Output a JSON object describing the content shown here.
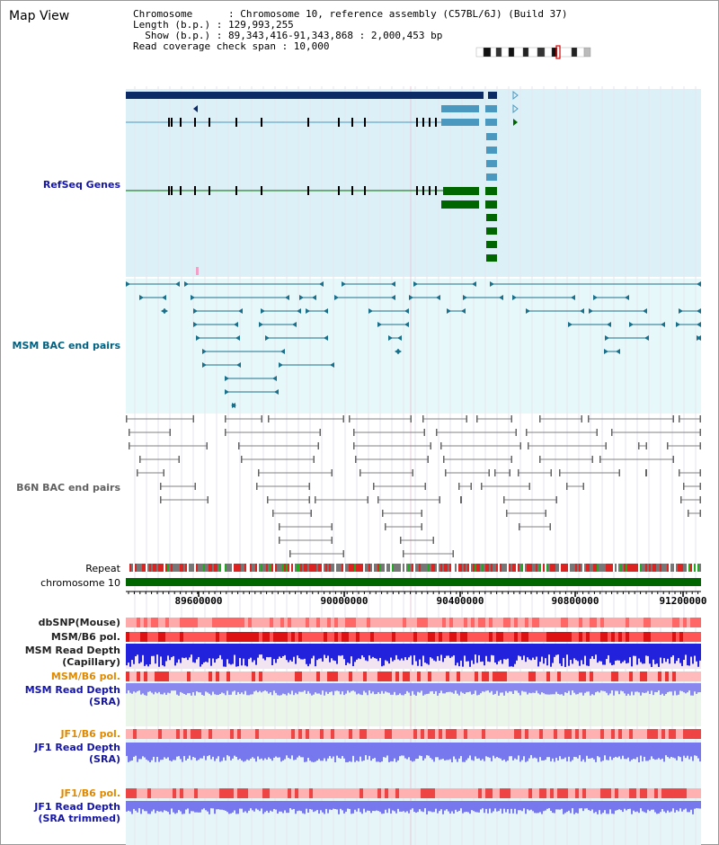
{
  "header": {
    "title": "Map View",
    "info_lines": [
      "Chromosome      : Chromosome 10, reference assembly (C57BL/6J) (Build 37)",
      "Length (b.p.) : 129,993,255",
      "  Show (b.p.) : 89,343,416-91,343,868 : 2,000,453 bp",
      "Read coverage check span : 10,000"
    ]
  },
  "tracks": {
    "refseq": "RefSeq Genes",
    "msm_bac": "MSM BAC end pairs",
    "b6n_bac": "B6N BAC end pairs",
    "repeat": "Repeat",
    "chromosome": "chromosome 10",
    "dbsnp": "dbSNP(Mouse)",
    "msm_b6_pol": "MSM/B6 pol.",
    "msm_depth_cap_1": "MSM Read Depth",
    "msm_depth_cap_2": "(Capillary)",
    "msm_b6_pol_2": "MSM/B6 pol.",
    "msm_depth_sra_1": "MSM Read Depth",
    "msm_depth_sra_2": "(SRA)",
    "jf1_b6_pol": "JF1/B6 pol.",
    "jf1_depth_sra_1": "JF1 Read Depth",
    "jf1_depth_sra_2": "(SRA)",
    "jf1_b6_pol_2": "JF1/B6 pol.",
    "jf1_depth_trim_1": "JF1 Read Depth",
    "jf1_depth_trim_2": "(SRA trimmed)"
  },
  "axis": {
    "ticks": [
      "89600000",
      "90000000",
      "90400000",
      "90800000",
      "91200000"
    ]
  },
  "colors": {
    "refseq_bg": "#dcf0f8",
    "msm_bg": "#e6f8fa",
    "gene_dark": "#0c2a66",
    "gene_mid": "#4a98c0",
    "gene_green": "#006600",
    "msm_line": "#1a6f8a",
    "b6n_line": "#808080",
    "chrom_green": "#006600",
    "snp_pink": "#ff8888",
    "pol_red": "#ee2222",
    "depth_blue": "#2222dd",
    "depth_light": "#7777ee",
    "sra_bg": "#eaf6ea"
  }
}
